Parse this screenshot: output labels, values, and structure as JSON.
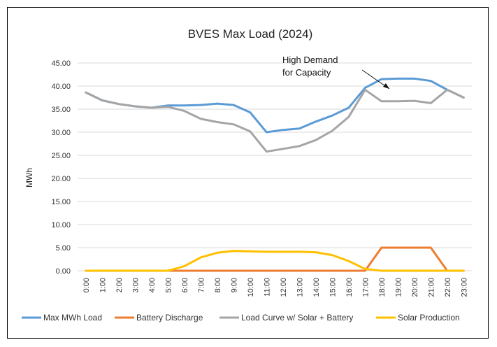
{
  "chart_data": {
    "type": "line",
    "title": "BVES Max  Load (2024)",
    "xlabel": "",
    "ylabel": "MWh",
    "ylim": [
      0,
      45
    ],
    "yticks": [
      "0.00",
      "5.00",
      "10.00",
      "15.00",
      "20.00",
      "25.00",
      "30.00",
      "35.00",
      "40.00",
      "45.00"
    ],
    "y_tick_values": [
      0,
      5,
      10,
      15,
      20,
      25,
      30,
      35,
      40,
      45
    ],
    "categories": [
      "0:00",
      "1:00",
      "2:00",
      "3:00",
      "4:00",
      "5:00",
      "6:00",
      "7:00",
      "8:00",
      "9:00",
      "10:00",
      "11:00",
      "12:00",
      "13:00",
      "14:00",
      "15:00",
      "16:00",
      "17:00",
      "18:00",
      "19:00",
      "20:00",
      "21:00",
      "22:00",
      "23:00"
    ],
    "series": [
      {
        "name": "Max MWh Load",
        "color": "#5b9bd5",
        "values": [
          38.6,
          36.9,
          36.1,
          35.6,
          35.3,
          35.8,
          35.8,
          35.9,
          36.2,
          35.9,
          34.3,
          30.0,
          30.5,
          30.8,
          32.3,
          33.6,
          35.3,
          39.6,
          41.5,
          41.6,
          41.6,
          41.1,
          39.2,
          37.5
        ]
      },
      {
        "name": "Battery Discharge",
        "color": "#ed7d31",
        "values": [
          0,
          0,
          0,
          0,
          0,
          0,
          0,
          0,
          0,
          0,
          0,
          0,
          0,
          0,
          0,
          0,
          0,
          0,
          5,
          5,
          5,
          5,
          0,
          0
        ]
      },
      {
        "name": "Load Curve w/ Solar + Battery",
        "color": "#a5a5a5",
        "values": [
          38.6,
          36.9,
          36.1,
          35.6,
          35.3,
          35.5,
          34.6,
          32.9,
          32.2,
          31.7,
          30.2,
          25.8,
          26.4,
          27.0,
          28.3,
          30.3,
          33.3,
          39.2,
          36.7,
          36.7,
          36.8,
          36.3,
          39.2,
          37.5
        ]
      },
      {
        "name": "Solar Production",
        "color": "#ffc000",
        "values": [
          0,
          0,
          0,
          0,
          0,
          0,
          1.0,
          2.9,
          3.9,
          4.3,
          4.2,
          4.1,
          4.1,
          4.1,
          4.0,
          3.4,
          2.1,
          0.4,
          0,
          0,
          0,
          0,
          0,
          0
        ]
      }
    ],
    "annotation": {
      "line1": "High Demand",
      "line2": "for Capacity"
    },
    "grid": true,
    "legend": "bottom"
  }
}
